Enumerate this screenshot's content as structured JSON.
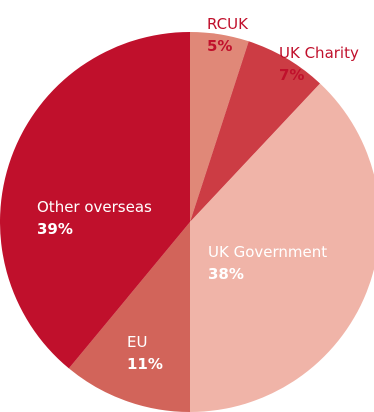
{
  "chart_data": {
    "type": "pie",
    "title": "",
    "slices": [
      {
        "label": "RCUK",
        "value": 5,
        "value_label": "5%",
        "color": "#e08878"
      },
      {
        "label": "UK Charity",
        "value": 7,
        "value_label": "7%",
        "color": "#cc3c44"
      },
      {
        "label": "UK Government",
        "value": 38,
        "value_label": "38%",
        "color": "#f0b4a8"
      },
      {
        "label": "EU",
        "value": 11,
        "value_label": "11%",
        "color": "#d2645a"
      },
      {
        "label": "Other overseas",
        "value": 39,
        "value_label": "39%",
        "color": "#c0102c"
      }
    ],
    "label_colors": {
      "outside": "#c0102c",
      "inside": "#ffffff"
    }
  }
}
